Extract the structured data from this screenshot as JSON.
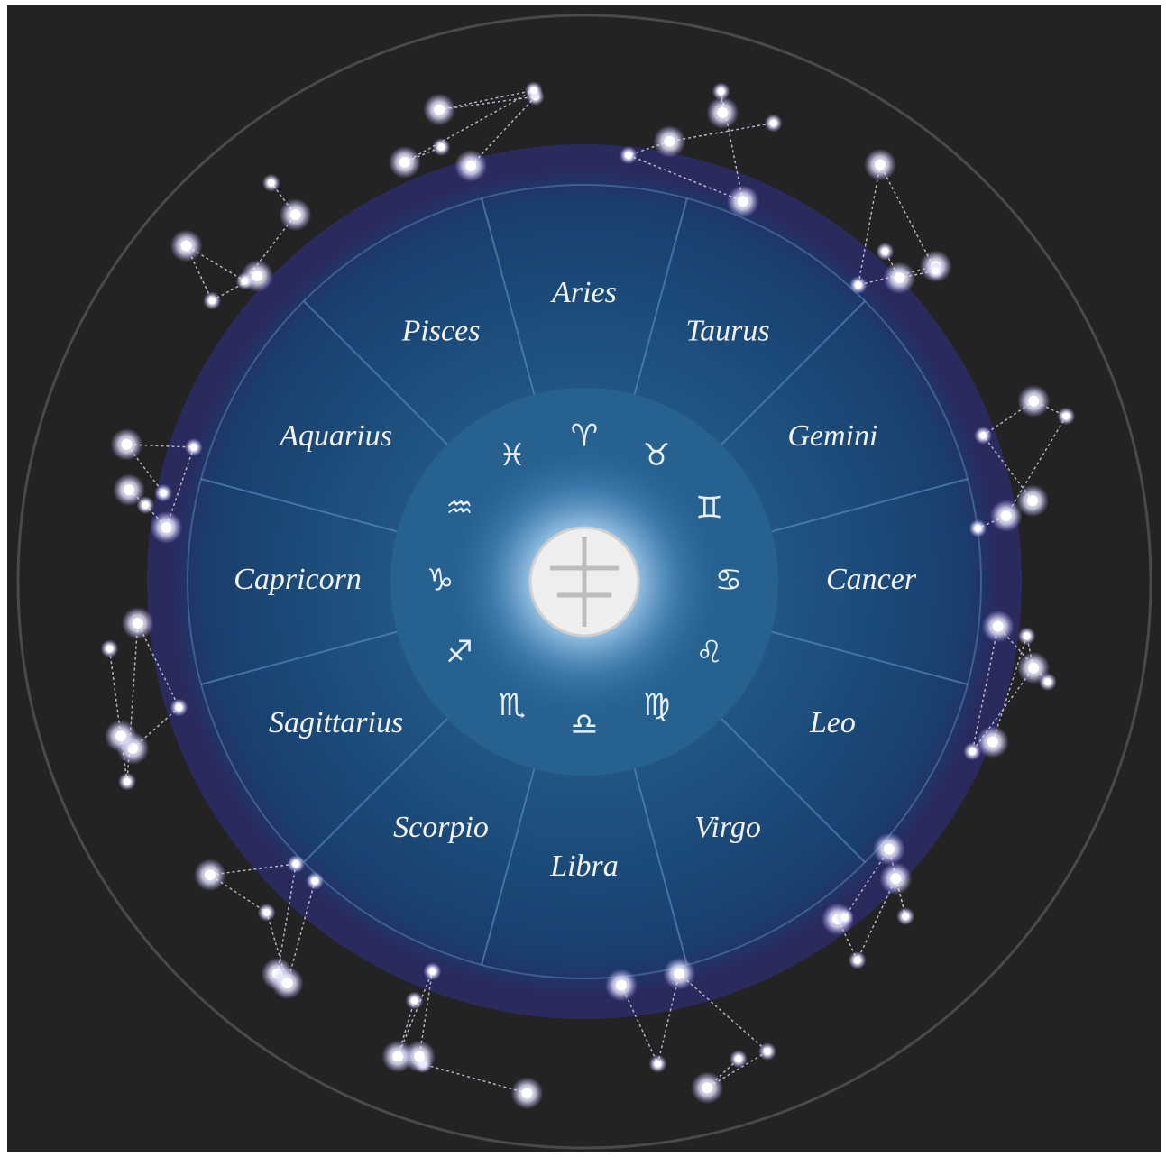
{
  "signs": [
    {
      "name": "Aries",
      "symbol": "♈︎"
    },
    {
      "name": "Taurus",
      "symbol": "♉︎"
    },
    {
      "name": "Gemini",
      "symbol": "♊︎"
    },
    {
      "name": "Cancer",
      "symbol": "♋︎"
    },
    {
      "name": "Leo",
      "symbol": "♌︎"
    },
    {
      "name": "Virgo",
      "symbol": "♍︎"
    },
    {
      "name": "Libra",
      "symbol": "♎︎"
    },
    {
      "name": "Scorpio",
      "symbol": "♏︎"
    },
    {
      "name": "Sagittarius",
      "symbol": "♐︎"
    },
    {
      "name": "Capricorn",
      "symbol": "♑︎"
    },
    {
      "name": "Aquarius",
      "symbol": "♒︎"
    },
    {
      "name": "Pisces",
      "symbol": "♓︎"
    }
  ]
}
